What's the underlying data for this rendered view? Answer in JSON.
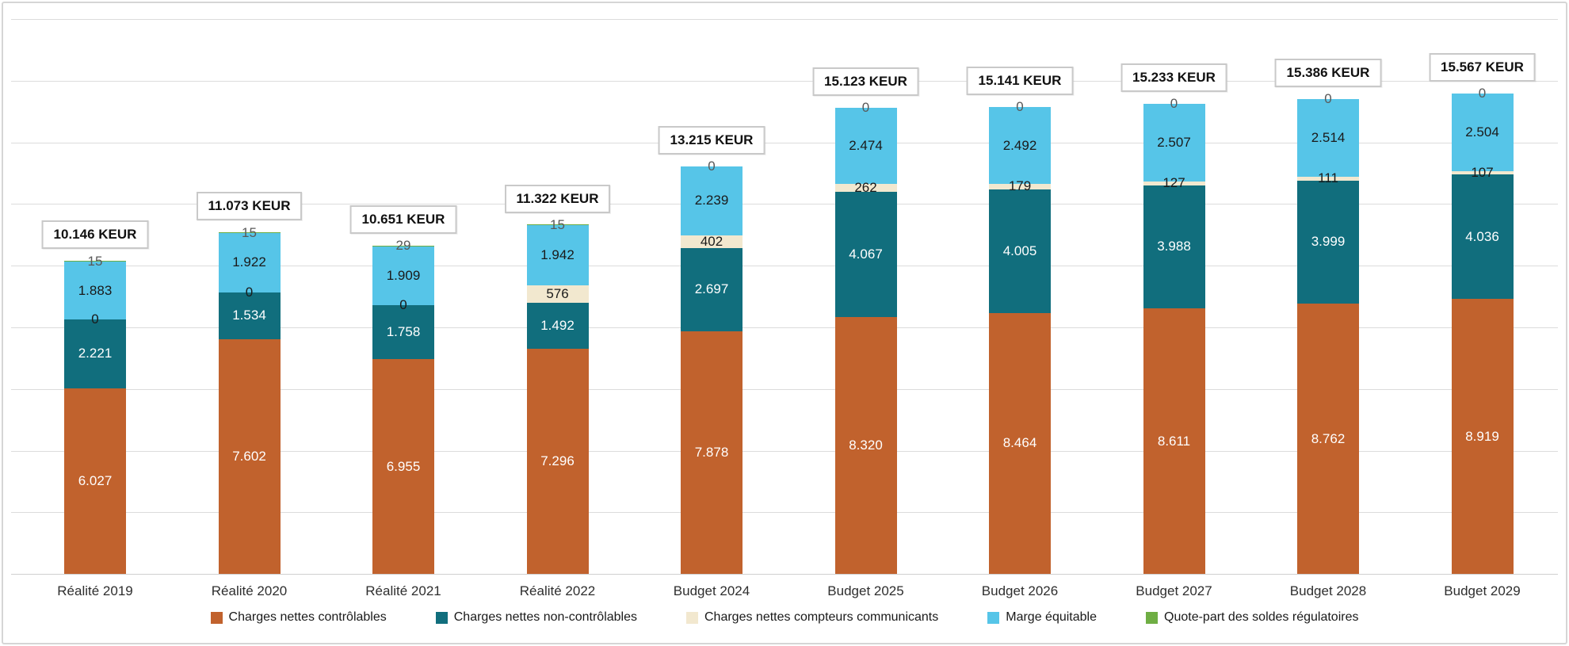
{
  "chart_data": {
    "type": "bar",
    "stacked": true,
    "title": "",
    "xlabel": "",
    "ylabel": "",
    "unit": "KEUR",
    "grid": true,
    "legend_position": "bottom",
    "ylim": [
      0,
      18000
    ],
    "gridline_interval": 2000,
    "categories": [
      "Réalité 2019",
      "Réalité 2020",
      "Réalité 2021",
      "Réalité 2022",
      "Budget 2024",
      "Budget 2025",
      "Budget 2026",
      "Budget 2027",
      "Budget 2028",
      "Budget 2029"
    ],
    "series": [
      {
        "name": "Charges nettes contrôlables",
        "color": "#C1622D",
        "label_color": "#ffffff",
        "values": [
          6027,
          7602,
          6955,
          7296,
          7878,
          8320,
          8464,
          8611,
          8762,
          8919
        ],
        "labels": [
          "6.027",
          "7.602",
          "6.955",
          "7.296",
          "7.878",
          "8.320",
          "8.464",
          "8.611",
          "8.762",
          "8.919"
        ]
      },
      {
        "name": "Charges nettes non-contrôlables",
        "color": "#116E7D",
        "label_color": "#ffffff",
        "values": [
          2221,
          1534,
          1758,
          1492,
          2697,
          4067,
          4005,
          3988,
          3999,
          4036
        ],
        "labels": [
          "2.221",
          "1.534",
          "1.758",
          "1.492",
          "2.697",
          "4.067",
          "4.005",
          "3.988",
          "3.999",
          "4.036"
        ]
      },
      {
        "name": "Charges nettes compteurs communicants",
        "color": "#F2E8CF",
        "label_color": "#1a1a1a",
        "values": [
          0,
          0,
          0,
          576,
          402,
          262,
          179,
          127,
          111,
          107
        ],
        "labels": [
          "0",
          "0",
          "0",
          "576",
          "402",
          "262",
          "179",
          "127",
          "111",
          "107"
        ]
      },
      {
        "name": "Marge équitable",
        "color": "#56C5E8",
        "label_color": "#1a1a1a",
        "values": [
          1883,
          1922,
          1909,
          1942,
          2239,
          2474,
          2492,
          2507,
          2514,
          2504
        ],
        "labels": [
          "1.883",
          "1.922",
          "1.909",
          "1.942",
          "2.239",
          "2.474",
          "2.492",
          "2.507",
          "2.514",
          "2.504"
        ]
      },
      {
        "name": "Quote-part des soldes régulatoires",
        "color": "#6FAE44",
        "label_color": "#595959",
        "values": [
          15,
          15,
          29,
          15,
          0,
          0,
          0,
          0,
          0,
          0
        ],
        "labels": [
          "15",
          "15",
          "29",
          "15",
          "0",
          "0",
          "0",
          "0",
          "0",
          "0"
        ]
      }
    ],
    "totals": [
      10146,
      11073,
      10651,
      11322,
      13215,
      15123,
      15141,
      15233,
      15386,
      15567
    ],
    "total_labels": [
      "10.146 KEUR",
      "11.073 KEUR",
      "10.651 KEUR",
      "11.322 KEUR",
      "13.215 KEUR",
      "15.123 KEUR",
      "15.141 KEUR",
      "15.233 KEUR",
      "15.386 KEUR",
      "15.567 KEUR"
    ]
  }
}
